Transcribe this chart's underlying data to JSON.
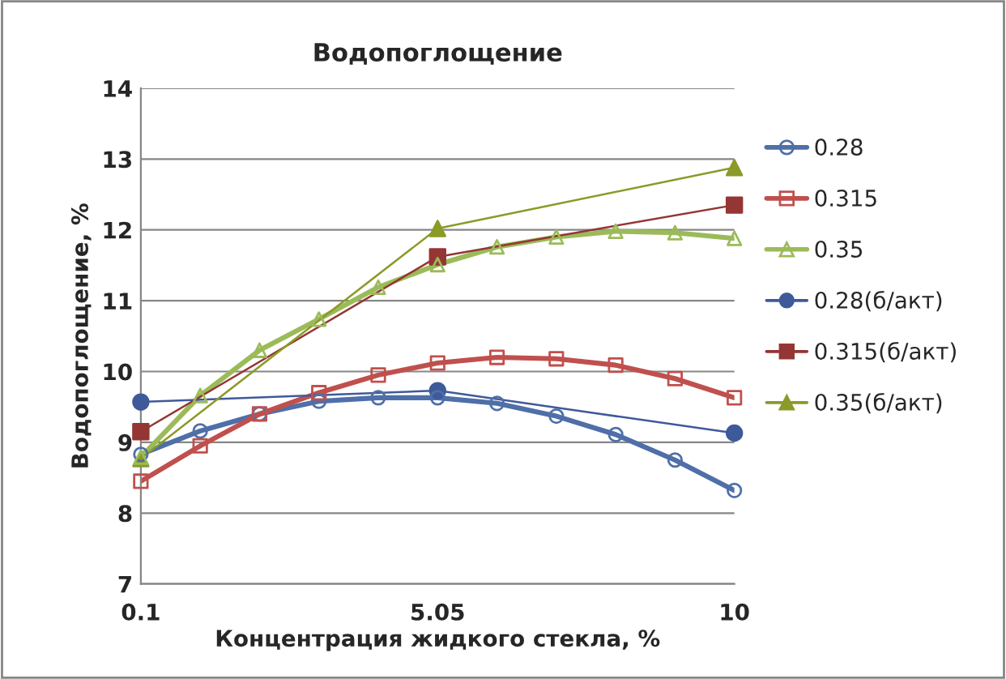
{
  "chart_data": {
    "type": "line",
    "title": "Водопоглощение",
    "xlabel": "Концентрация жидкого стекла, %",
    "ylabel": "Водопоглощение, %",
    "xlim": [
      0.1,
      10
    ],
    "xticks": [
      0.1,
      5.05,
      10
    ],
    "ylim": [
      7,
      14
    ],
    "yticks": [
      7,
      8,
      9,
      10,
      11,
      12,
      13,
      14
    ],
    "grid": "y",
    "legend": "right",
    "series": [
      {
        "name": "0.28",
        "color": "#4f6fa8",
        "marker": "circle",
        "x": [
          0.1,
          1.09,
          2.08,
          3.07,
          4.06,
          5.05,
          6.04,
          7.03,
          8.02,
          9.01,
          10
        ],
        "values": [
          8.83,
          9.16,
          9.4,
          9.58,
          9.63,
          9.63,
          9.55,
          9.37,
          9.11,
          8.75,
          8.32
        ]
      },
      {
        "name": "0.315",
        "color": "#c0504d",
        "marker": "square",
        "x": [
          0.1,
          1.09,
          2.08,
          3.07,
          4.06,
          5.05,
          6.04,
          7.03,
          8.02,
          9.01,
          10
        ],
        "values": [
          8.45,
          8.95,
          9.4,
          9.7,
          9.95,
          10.12,
          10.2,
          10.18,
          10.09,
          9.9,
          9.63
        ]
      },
      {
        "name": "0.35",
        "color": "#9bbb59",
        "marker": "triangle",
        "x": [
          0.1,
          1.09,
          2.08,
          3.07,
          4.06,
          5.05,
          6.04,
          7.03,
          8.02,
          9.01,
          10
        ],
        "values": [
          8.79,
          9.66,
          10.3,
          10.74,
          11.19,
          11.51,
          11.76,
          11.9,
          11.98,
          11.96,
          11.88
        ]
      },
      {
        "name": "0.28(б/акт)",
        "color": "#3f5a9a",
        "marker": "circle",
        "x": [
          0.1,
          5.05,
          10
        ],
        "values": [
          9.57,
          9.73,
          9.13
        ]
      },
      {
        "name": "0.315(б/акт)",
        "color": "#943634",
        "marker": "square",
        "x": [
          0.1,
          5.05,
          10
        ],
        "values": [
          9.15,
          11.62,
          12.35
        ]
      },
      {
        "name": "0.35(б/акт)",
        "color": "#8c9a28",
        "marker": "triangle",
        "x": [
          0.1,
          5.05,
          10
        ],
        "values": [
          8.77,
          12.02,
          12.88
        ]
      }
    ]
  }
}
